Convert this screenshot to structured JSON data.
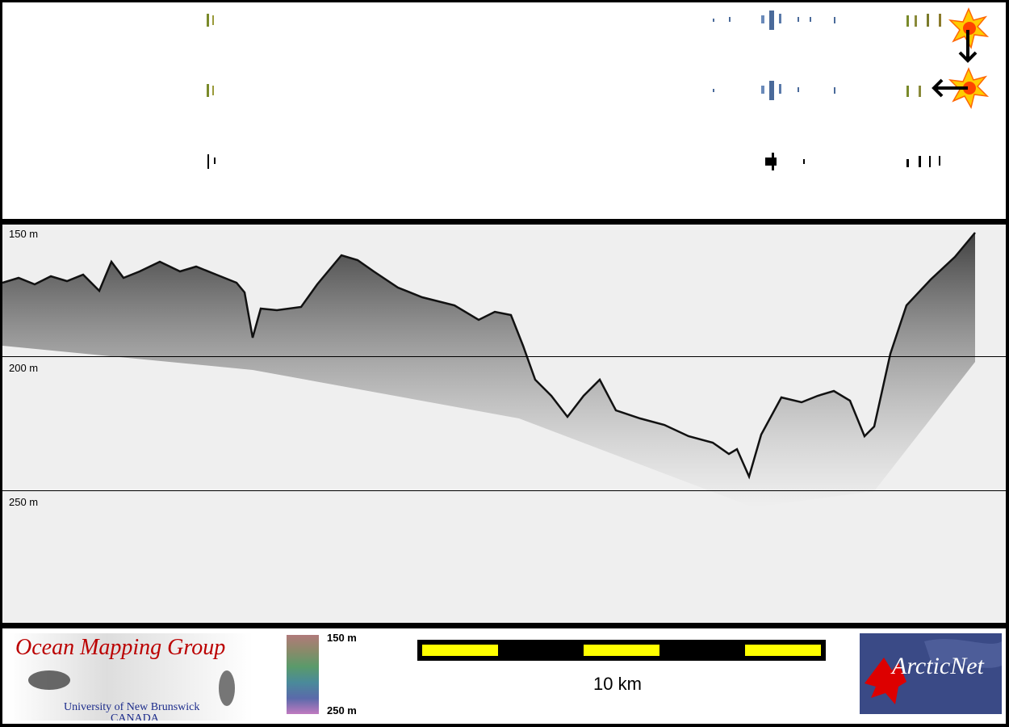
{
  "depth_labels": [
    "150 m",
    "200 m",
    "250 m"
  ],
  "colorbar": {
    "top_label": "150 m",
    "bottom_label": "250 m"
  },
  "scalebar": {
    "label": "10 km"
  },
  "logos": {
    "omg_title": "Ocean Mapping Group",
    "omg_sub1": "University of New Brunswick",
    "omg_sub2": "CANADA",
    "arcticnet": "ArcticNet"
  },
  "colors": {
    "scale_fill": "#ffff00",
    "omg_red": "#b00000",
    "arctic_blue": "#3a4a86"
  }
}
